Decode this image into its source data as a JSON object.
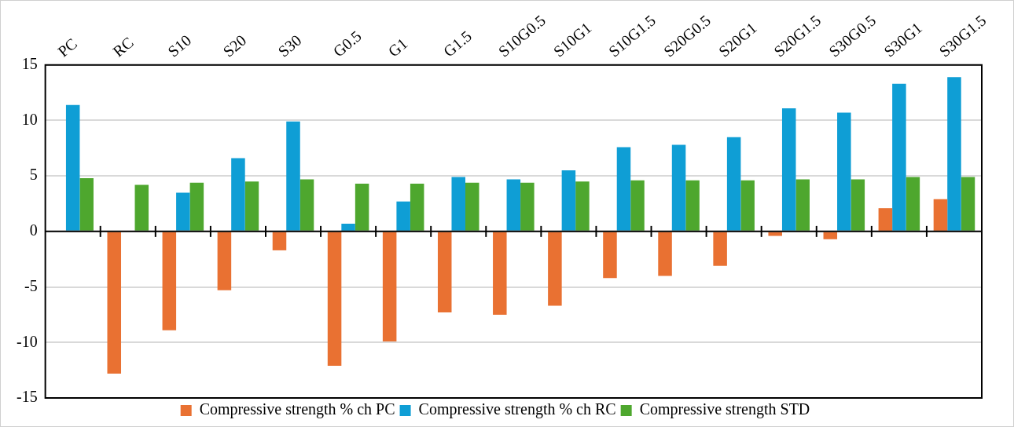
{
  "chart_data": {
    "type": "bar",
    "categories": [
      "PC",
      "RC",
      "S10",
      "S20",
      "S30",
      "G0.5",
      "G1",
      "G1.5",
      "S10G0.5",
      "S10G1",
      "S10G1.5",
      "S20G0.5",
      "S20G1",
      "S20G1.5",
      "S30G0.5",
      "S30G1",
      "S30G1.5"
    ],
    "series": [
      {
        "name": "Compressive strength % ch PC",
        "color": "#e97132",
        "values": [
          0,
          -12.8,
          -8.9,
          -5.3,
          -1.7,
          -12.1,
          -9.9,
          -7.3,
          -7.5,
          -6.7,
          -4.2,
          -4.0,
          -3.1,
          -0.4,
          -0.7,
          2.1,
          2.9
        ]
      },
      {
        "name": "Compressive strength % ch RC",
        "color": "#0f9ed5",
        "values": [
          11.4,
          0,
          3.5,
          6.6,
          9.9,
          0.7,
          2.7,
          4.9,
          4.7,
          5.5,
          7.6,
          7.8,
          8.5,
          11.1,
          10.7,
          13.3,
          13.9
        ]
      },
      {
        "name": "Compressive strength STD",
        "color": "#4ea72e",
        "values": [
          4.8,
          4.2,
          4.4,
          4.5,
          4.7,
          4.3,
          4.3,
          4.4,
          4.4,
          4.5,
          4.6,
          4.6,
          4.6,
          4.7,
          4.7,
          4.9,
          4.9
        ]
      }
    ],
    "ylim": [
      -15,
      15
    ],
    "yticks": [
      -15,
      -10,
      -5,
      0,
      5,
      10,
      15
    ],
    "grid": "y",
    "legend": "bottom"
  }
}
